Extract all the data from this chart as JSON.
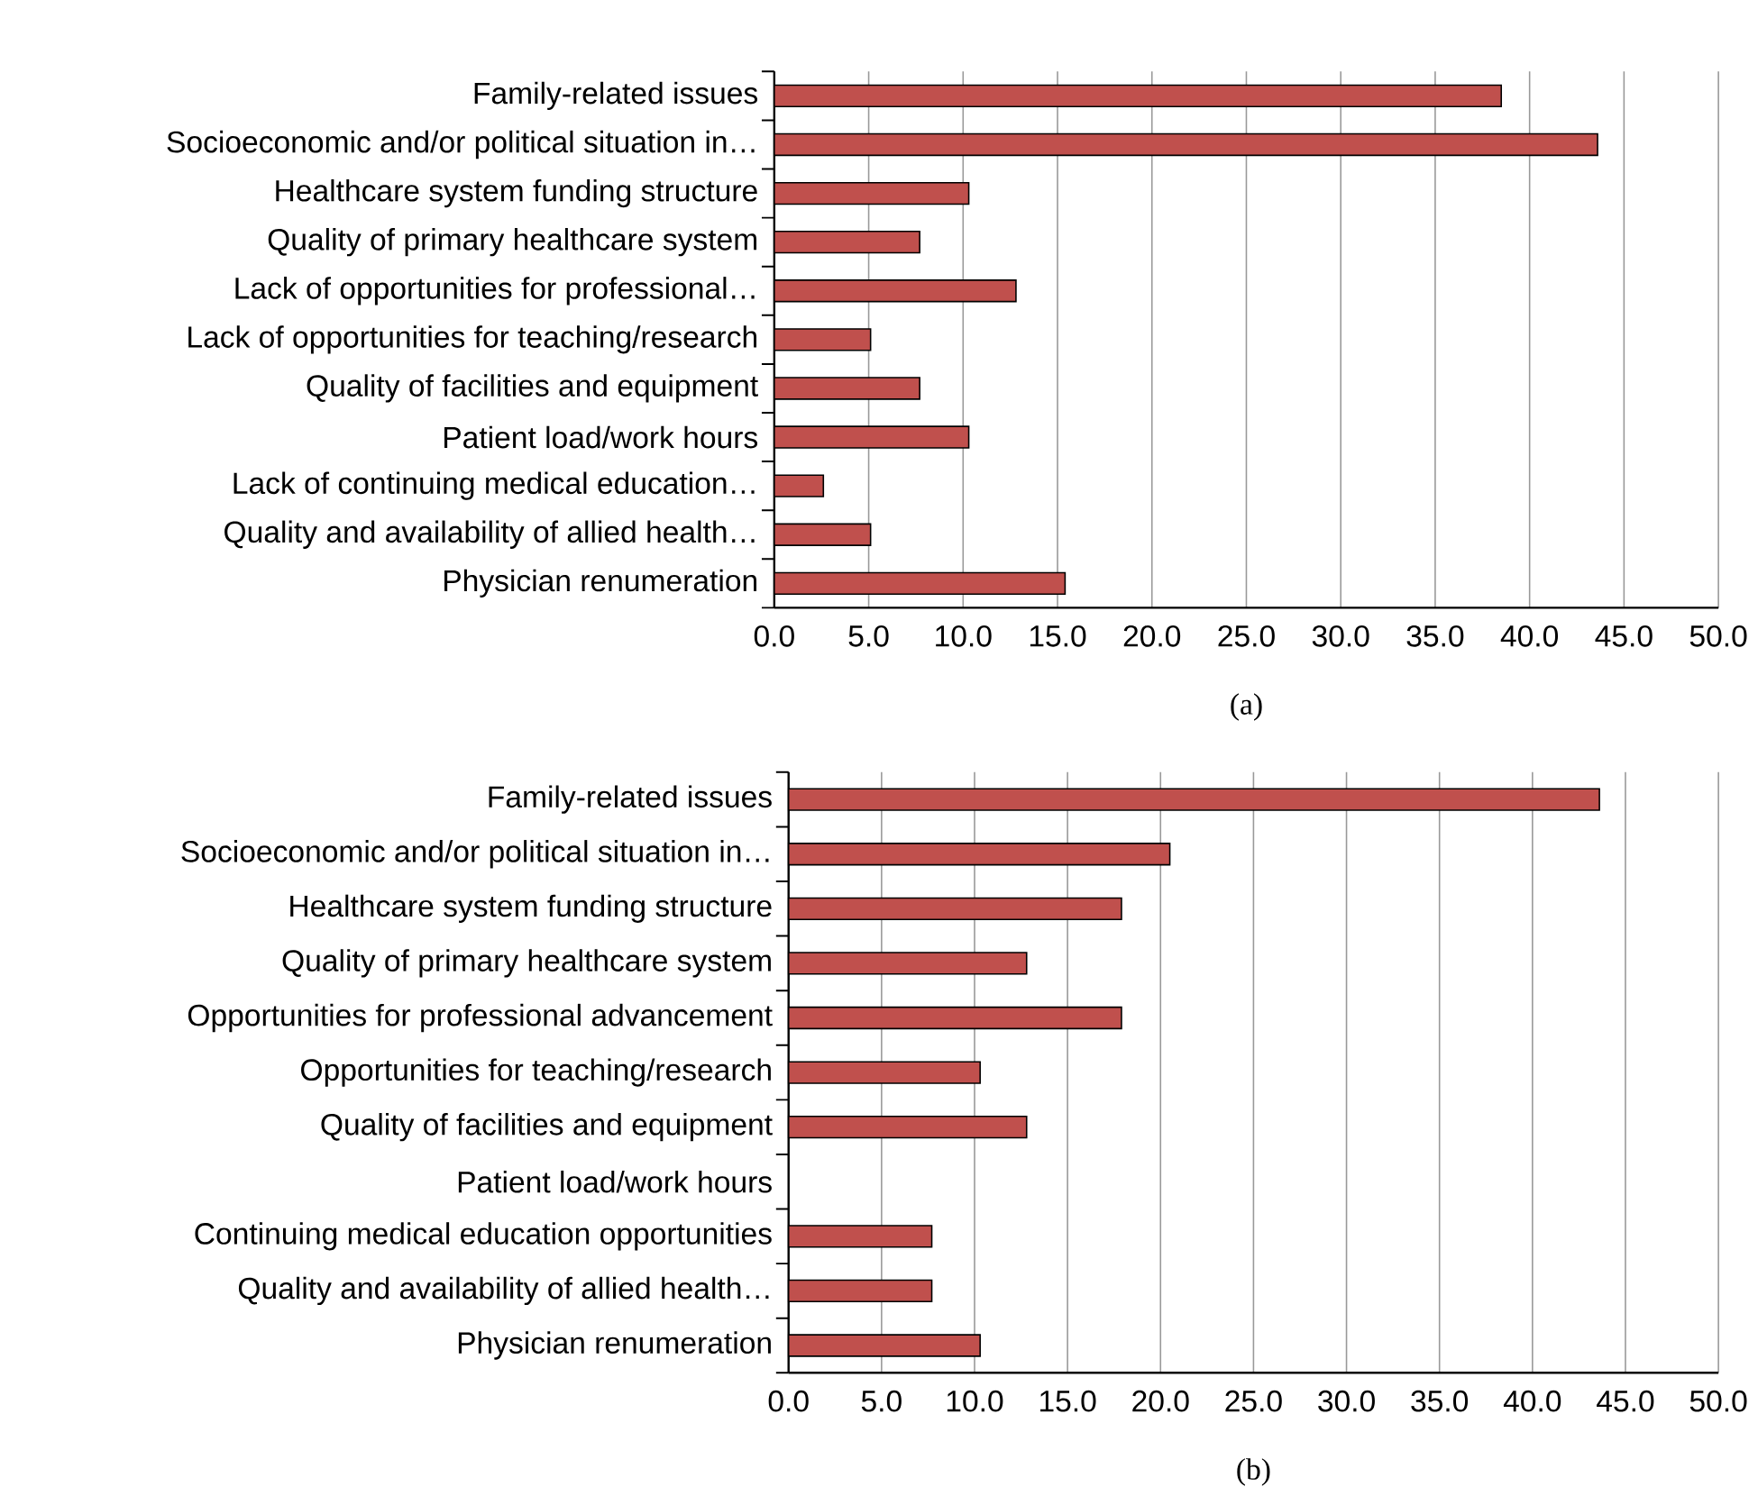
{
  "chart_data": [
    {
      "type": "bar",
      "orientation": "horizontal",
      "color": "#c0504d",
      "grid": "x",
      "xlim": [
        0,
        50
      ],
      "xticks": [
        {
          "value": 0,
          "label": "0.0"
        },
        {
          "value": 5,
          "label": "5.0"
        },
        {
          "value": 10,
          "label": "10.0"
        },
        {
          "value": 15,
          "label": "15.0"
        },
        {
          "value": 20,
          "label": "20.0"
        },
        {
          "value": 25,
          "label": "25.0"
        },
        {
          "value": 30,
          "label": "30.0"
        },
        {
          "value": 35,
          "label": "35.0"
        },
        {
          "value": 40,
          "label": "40.0"
        },
        {
          "value": 45,
          "label": "45.0"
        },
        {
          "value": 50,
          "label": "50.0"
        }
      ],
      "categories": [
        "Family-related issues",
        "Socioeconomic and/or political situation in…",
        "Healthcare system funding structure",
        "Quality of primary healthcare system",
        "Lack of opportunities for professional…",
        "Lack of opportunities for teaching/research",
        "Quality of facilities and equipment",
        "Patient load/work hours",
        "Lack of continuing medical education…",
        "Quality and availability of allied health…",
        "Physician renumeration"
      ],
      "values": [
        38.5,
        43.6,
        10.3,
        7.7,
        12.8,
        5.1,
        7.7,
        10.3,
        2.6,
        5.1,
        15.4
      ],
      "annotations": [
        "(a)"
      ]
    },
    {
      "type": "bar",
      "orientation": "horizontal",
      "color": "#c0504d",
      "grid": "x",
      "xlim": [
        0,
        50
      ],
      "xticks": [
        {
          "value": 0,
          "label": "0.0"
        },
        {
          "value": 5,
          "label": "5.0"
        },
        {
          "value": 10,
          "label": "10.0"
        },
        {
          "value": 15,
          "label": "15.0"
        },
        {
          "value": 20,
          "label": "20.0"
        },
        {
          "value": 25,
          "label": "25.0"
        },
        {
          "value": 30,
          "label": "30.0"
        },
        {
          "value": 35,
          "label": "35.0"
        },
        {
          "value": 40,
          "label": "40.0"
        },
        {
          "value": 45,
          "label": "45.0"
        },
        {
          "value": 50,
          "label": "50.0"
        }
      ],
      "categories": [
        "Family-related issues",
        "Socioeconomic and/or political situation in…",
        "Healthcare system funding structure",
        "Quality of primary healthcare system",
        "Opportunities for professional advancement",
        "Opportunities for teaching/research",
        "Quality of facilities and equipment",
        "Patient load/work hours",
        "Continuing medical education opportunities",
        "Quality and availability of allied health…",
        "Physician renumeration"
      ],
      "values": [
        43.6,
        20.5,
        17.9,
        12.8,
        17.9,
        10.3,
        12.8,
        null,
        7.7,
        7.7,
        10.3
      ],
      "annotations": [
        "(b)"
      ]
    }
  ]
}
